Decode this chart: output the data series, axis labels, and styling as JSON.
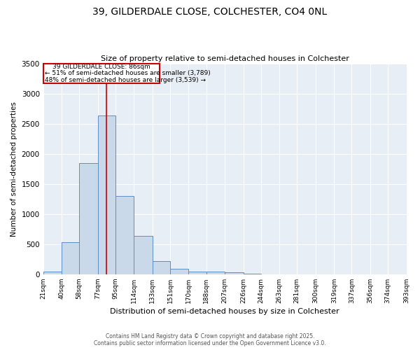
{
  "title": "39, GILDERDALE CLOSE, COLCHESTER, CO4 0NL",
  "subtitle": "Size of property relative to semi-detached houses in Colchester",
  "xlabel": "Distribution of semi-detached houses by size in Colchester",
  "ylabel": "Number of semi-detached properties",
  "bin_edges": [
    21,
    40,
    58,
    77,
    95,
    114,
    133,
    151,
    170,
    188,
    207,
    226,
    244,
    263,
    281,
    300,
    319,
    337,
    356,
    374,
    393
  ],
  "bar_heights": [
    50,
    530,
    1850,
    2640,
    1300,
    640,
    215,
    90,
    50,
    40,
    30,
    5,
    3,
    2,
    2,
    1,
    1,
    0,
    0,
    0
  ],
  "bar_facecolor": "#c9d9ea",
  "bar_edgecolor": "#5b8fc9",
  "vline_x": 86,
  "vline_color": "#cc0000",
  "annotation_title": "39 GILDERDALE CLOSE: 86sqm",
  "annotation_line2": "← 51% of semi-detached houses are smaller (3,789)",
  "annotation_line3": "48% of semi-detached houses are larger (3,539) →",
  "annotation_box_color": "#cc0000",
  "ylim": [
    0,
    3500
  ],
  "yticks": [
    0,
    500,
    1000,
    1500,
    2000,
    2500,
    3000,
    3500
  ],
  "bg_color": "#e8eef5",
  "footer_line1": "Contains HM Land Registry data © Crown copyright and database right 2025.",
  "footer_line2": "Contains public sector information licensed under the Open Government Licence v3.0."
}
